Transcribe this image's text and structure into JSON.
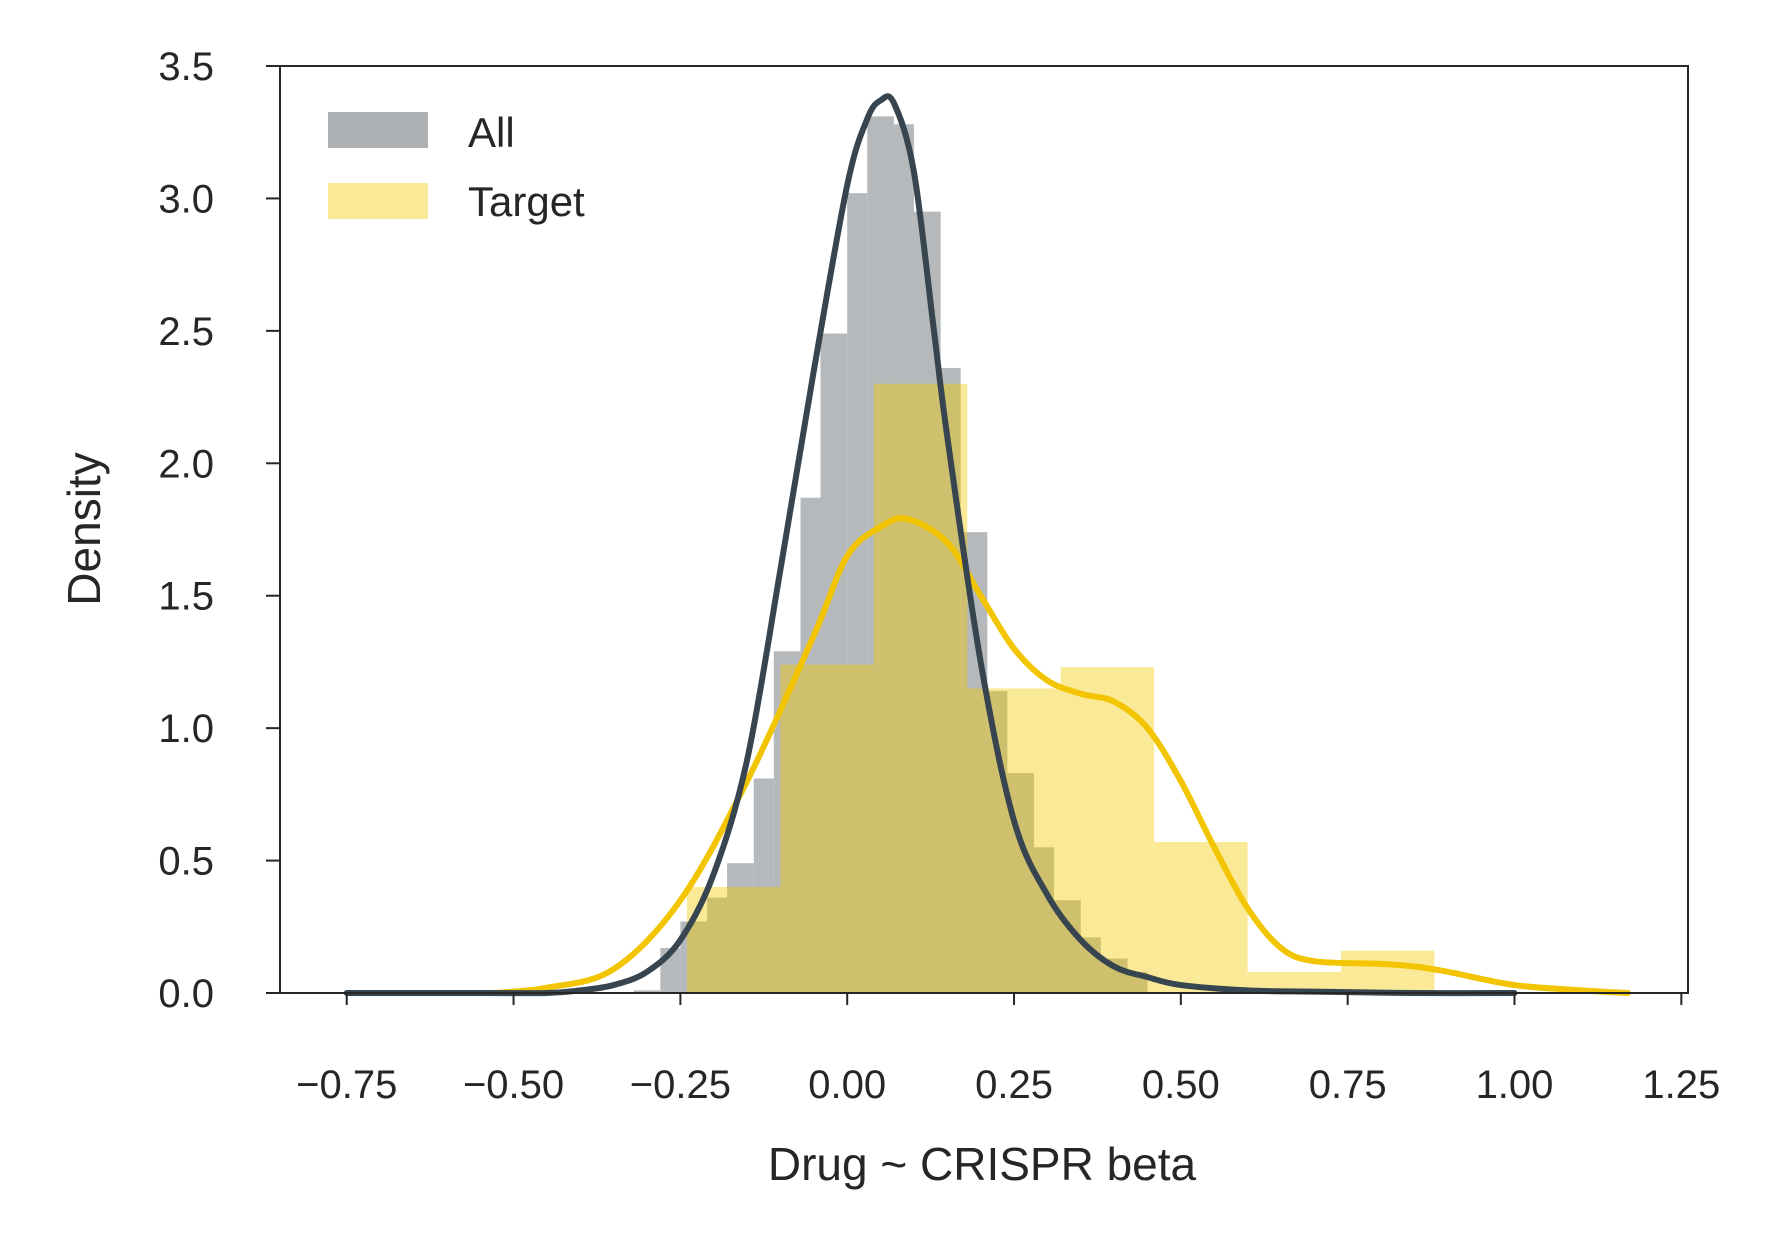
{
  "chart_data": {
    "type": "histogram",
    "xlabel": "Drug ~ CRISPR beta",
    "ylabel": "Density",
    "xlim": [
      -0.85,
      1.26
    ],
    "ylim": [
      0,
      3.5
    ],
    "xticks": [
      -0.75,
      -0.5,
      -0.25,
      0.0,
      0.25,
      0.5,
      0.75,
      1.0,
      1.25
    ],
    "xtick_labels": [
      "−0.75",
      "−0.50",
      "−0.25",
      "0.00",
      "0.25",
      "0.50",
      "0.75",
      "1.00",
      "1.25"
    ],
    "yticks": [
      0.0,
      0.5,
      1.0,
      1.5,
      2.0,
      2.5,
      3.0,
      3.5
    ],
    "ytick_labels": [
      "0.0",
      "0.5",
      "1.0",
      "1.5",
      "2.0",
      "2.5",
      "3.0",
      "3.5"
    ],
    "grid": false,
    "legend_position": "top-left",
    "series": [
      {
        "name": "All",
        "bar_color": "#adb1b4",
        "line_color": "#36454f",
        "bins": [
          [
            -0.32,
            -0.28,
            0.01
          ],
          [
            -0.28,
            -0.25,
            0.17
          ],
          [
            -0.25,
            -0.21,
            0.27
          ],
          [
            -0.21,
            -0.18,
            0.36
          ],
          [
            -0.18,
            -0.14,
            0.49
          ],
          [
            -0.14,
            -0.11,
            0.81
          ],
          [
            -0.11,
            -0.07,
            1.29
          ],
          [
            -0.07,
            -0.04,
            1.87
          ],
          [
            -0.04,
            0.0,
            2.49
          ],
          [
            0.0,
            0.03,
            3.02
          ],
          [
            0.03,
            0.07,
            3.31
          ],
          [
            0.07,
            0.1,
            3.28
          ],
          [
            0.1,
            0.14,
            2.95
          ],
          [
            0.14,
            0.17,
            2.36
          ],
          [
            0.17,
            0.21,
            1.74
          ],
          [
            0.21,
            0.24,
            1.14
          ],
          [
            0.24,
            0.28,
            0.83
          ],
          [
            0.28,
            0.31,
            0.55
          ],
          [
            0.31,
            0.35,
            0.35
          ],
          [
            0.35,
            0.38,
            0.21
          ],
          [
            0.38,
            0.42,
            0.13
          ],
          [
            0.42,
            0.45,
            0.08
          ]
        ],
        "kde_x": [
          -0.75,
          -0.55,
          -0.45,
          -0.4,
          -0.35,
          -0.3,
          -0.25,
          -0.2,
          -0.15,
          -0.1,
          -0.05,
          0.0,
          0.03,
          0.05,
          0.07,
          0.1,
          0.13,
          0.15,
          0.2,
          0.25,
          0.3,
          0.35,
          0.4,
          0.45,
          0.5,
          0.6,
          0.7,
          0.85,
          1.0
        ],
        "kde_y": [
          0.0,
          0.0,
          0.0,
          0.01,
          0.03,
          0.08,
          0.2,
          0.45,
          0.88,
          1.6,
          2.35,
          3.05,
          3.3,
          3.37,
          3.36,
          3.1,
          2.5,
          2.1,
          1.25,
          0.65,
          0.37,
          0.2,
          0.1,
          0.06,
          0.03,
          0.01,
          0.005,
          0.0,
          0.0
        ]
      },
      {
        "name": "Target",
        "bar_color": "#f2cb05",
        "line_color": "#f2c500",
        "bins": [
          [
            -0.24,
            -0.1,
            0.4
          ],
          [
            -0.1,
            0.04,
            1.24
          ],
          [
            0.04,
            0.18,
            2.3
          ],
          [
            0.18,
            0.32,
            1.15
          ],
          [
            0.32,
            0.46,
            1.23
          ],
          [
            0.46,
            0.6,
            0.57
          ],
          [
            0.6,
            0.74,
            0.08
          ],
          [
            0.74,
            0.88,
            0.16
          ]
        ],
        "kde_x": [
          -0.53,
          -0.45,
          -0.35,
          -0.25,
          -0.15,
          -0.05,
          0.0,
          0.05,
          0.09,
          0.15,
          0.2,
          0.25,
          0.3,
          0.35,
          0.4,
          0.45,
          0.5,
          0.55,
          0.6,
          0.65,
          0.7,
          0.8,
          0.85,
          0.9,
          1.0,
          1.1,
          1.17
        ],
        "kde_y": [
          0.0,
          0.02,
          0.09,
          0.35,
          0.8,
          1.35,
          1.65,
          1.76,
          1.79,
          1.7,
          1.5,
          1.3,
          1.18,
          1.13,
          1.1,
          1.0,
          0.8,
          0.55,
          0.32,
          0.17,
          0.12,
          0.11,
          0.1,
          0.08,
          0.03,
          0.01,
          0.0
        ]
      }
    ]
  }
}
